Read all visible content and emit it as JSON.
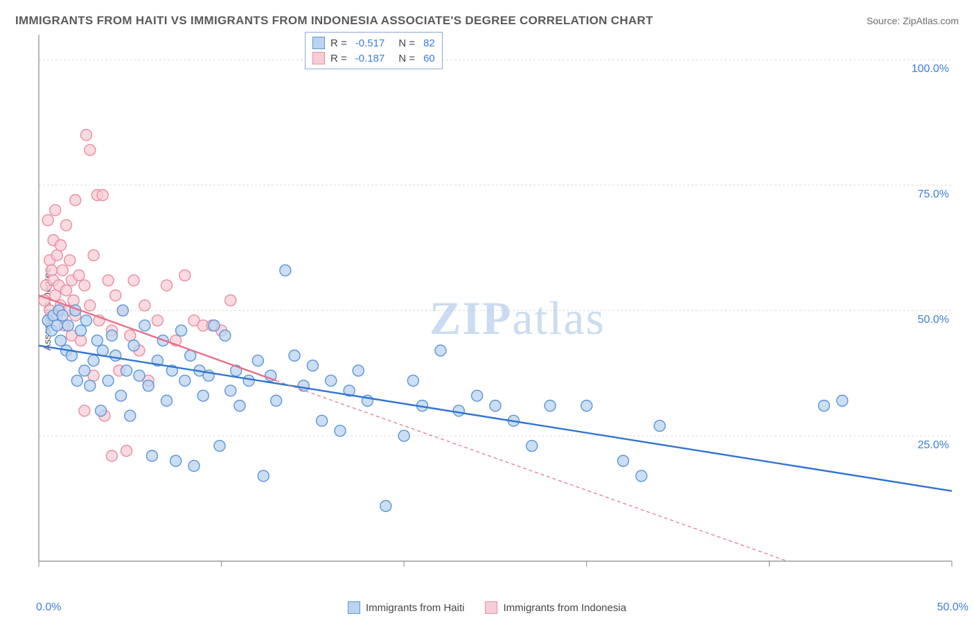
{
  "title": "IMMIGRANTS FROM HAITI VS IMMIGRANTS FROM INDONESIA ASSOCIATE'S DEGREE CORRELATION CHART",
  "source_label": "Source: ZipAtlas.com",
  "ylabel": "Associate's Degree",
  "watermark": "ZIPatlas",
  "chart": {
    "type": "scatter",
    "xlim": [
      0,
      50
    ],
    "ylim": [
      0,
      105
    ],
    "x_ticks": [
      "0.0%",
      "50.0%"
    ],
    "y_ticks": [
      {
        "v": 25,
        "label": "25.0%"
      },
      {
        "v": 50,
        "label": "50.0%"
      },
      {
        "v": 75,
        "label": "75.0%"
      },
      {
        "v": 100,
        "label": "100.0%"
      }
    ],
    "x_minor_ticks": [
      0,
      10,
      20,
      30,
      40,
      50
    ],
    "grid_color": "#d9d9d9",
    "axis_color": "#888888",
    "tick_label_color": "#3b7dd8",
    "background_color": "#ffffff",
    "marker_radius": 8,
    "marker_stroke_width": 1.4,
    "trend_line_width": 2.4,
    "trend_dash": "5,4",
    "series": [
      {
        "key": "haiti",
        "label": "Immigrants from Haiti",
        "fill": "#b9d3f0",
        "stroke": "#5a94d6",
        "line_color": "#2f74d0",
        "R": "-0.517",
        "N": "82",
        "trend_solid": {
          "x1": 0,
          "y1": 43,
          "x2": 50,
          "y2": 14
        },
        "trend_ext": null,
        "points": [
          [
            0.5,
            48
          ],
          [
            0.7,
            46
          ],
          [
            0.8,
            49
          ],
          [
            1.0,
            47
          ],
          [
            1.1,
            50
          ],
          [
            1.2,
            44
          ],
          [
            1.3,
            49
          ],
          [
            1.5,
            42
          ],
          [
            1.6,
            47
          ],
          [
            1.8,
            41
          ],
          [
            2.0,
            50
          ],
          [
            2.1,
            36
          ],
          [
            2.3,
            46
          ],
          [
            2.5,
            38
          ],
          [
            2.6,
            48
          ],
          [
            2.8,
            35
          ],
          [
            3.0,
            40
          ],
          [
            3.2,
            44
          ],
          [
            3.4,
            30
          ],
          [
            3.5,
            42
          ],
          [
            3.8,
            36
          ],
          [
            4.0,
            45
          ],
          [
            4.2,
            41
          ],
          [
            4.5,
            33
          ],
          [
            4.6,
            50
          ],
          [
            4.8,
            38
          ],
          [
            5.0,
            29
          ],
          [
            5.2,
            43
          ],
          [
            5.5,
            37
          ],
          [
            5.8,
            47
          ],
          [
            6.0,
            35
          ],
          [
            6.2,
            21
          ],
          [
            6.5,
            40
          ],
          [
            6.8,
            44
          ],
          [
            7.0,
            32
          ],
          [
            7.3,
            38
          ],
          [
            7.5,
            20
          ],
          [
            7.8,
            46
          ],
          [
            8.0,
            36
          ],
          [
            8.3,
            41
          ],
          [
            8.5,
            19
          ],
          [
            8.8,
            38
          ],
          [
            9.0,
            33
          ],
          [
            9.3,
            37
          ],
          [
            9.6,
            47
          ],
          [
            9.9,
            23
          ],
          [
            10.2,
            45
          ],
          [
            10.5,
            34
          ],
          [
            10.8,
            38
          ],
          [
            11.0,
            31
          ],
          [
            11.5,
            36
          ],
          [
            12.0,
            40
          ],
          [
            12.3,
            17
          ],
          [
            12.7,
            37
          ],
          [
            13.0,
            32
          ],
          [
            13.5,
            58
          ],
          [
            14.0,
            41
          ],
          [
            14.5,
            35
          ],
          [
            15.0,
            39
          ],
          [
            15.5,
            28
          ],
          [
            16.0,
            36
          ],
          [
            16.5,
            26
          ],
          [
            17.0,
            34
          ],
          [
            17.5,
            38
          ],
          [
            18.0,
            32
          ],
          [
            19.0,
            11
          ],
          [
            20.0,
            25
          ],
          [
            20.5,
            36
          ],
          [
            21.0,
            31
          ],
          [
            22.0,
            42
          ],
          [
            23.0,
            30
          ],
          [
            24.0,
            33
          ],
          [
            25.0,
            31
          ],
          [
            26.0,
            28
          ],
          [
            27.0,
            23
          ],
          [
            28.0,
            31
          ],
          [
            30.0,
            31
          ],
          [
            32.0,
            20
          ],
          [
            33.0,
            17
          ],
          [
            34.0,
            27
          ],
          [
            43.0,
            31
          ],
          [
            44.0,
            32
          ]
        ]
      },
      {
        "key": "indonesia",
        "label": "Immigrants from Indonesia",
        "fill": "#f6cdd6",
        "stroke": "#e98ca0",
        "line_color": "#e76f88",
        "R": "-0.187",
        "N": "60",
        "trend_solid": {
          "x1": 0,
          "y1": 53,
          "x2": 13,
          "y2": 36
        },
        "trend_ext": {
          "x1": 13,
          "y1": 36,
          "x2": 41,
          "y2": 0
        },
        "points": [
          [
            0.3,
            52
          ],
          [
            0.4,
            55
          ],
          [
            0.5,
            68
          ],
          [
            0.6,
            50
          ],
          [
            0.6,
            60
          ],
          [
            0.7,
            58
          ],
          [
            0.8,
            56
          ],
          [
            0.8,
            64
          ],
          [
            0.9,
            53
          ],
          [
            0.9,
            70
          ],
          [
            1.0,
            49
          ],
          [
            1.0,
            61
          ],
          [
            1.1,
            55
          ],
          [
            1.2,
            51
          ],
          [
            1.2,
            63
          ],
          [
            1.3,
            58
          ],
          [
            1.4,
            47
          ],
          [
            1.5,
            54
          ],
          [
            1.5,
            67
          ],
          [
            1.6,
            50
          ],
          [
            1.7,
            60
          ],
          [
            1.8,
            45
          ],
          [
            1.8,
            56
          ],
          [
            1.9,
            52
          ],
          [
            2.0,
            49
          ],
          [
            2.0,
            72
          ],
          [
            2.2,
            57
          ],
          [
            2.3,
            44
          ],
          [
            2.5,
            55
          ],
          [
            2.5,
            30
          ],
          [
            2.6,
            85
          ],
          [
            2.8,
            82
          ],
          [
            2.8,
            51
          ],
          [
            3.0,
            61
          ],
          [
            3.0,
            37
          ],
          [
            3.2,
            73
          ],
          [
            3.3,
            48
          ],
          [
            3.5,
            73
          ],
          [
            3.6,
            29
          ],
          [
            3.8,
            56
          ],
          [
            4.0,
            46
          ],
          [
            4.0,
            21
          ],
          [
            4.2,
            53
          ],
          [
            4.4,
            38
          ],
          [
            4.6,
            50
          ],
          [
            4.8,
            22
          ],
          [
            5.0,
            45
          ],
          [
            5.2,
            56
          ],
          [
            5.5,
            42
          ],
          [
            5.8,
            51
          ],
          [
            6.0,
            36
          ],
          [
            6.5,
            48
          ],
          [
            7.0,
            55
          ],
          [
            7.5,
            44
          ],
          [
            8.0,
            57
          ],
          [
            8.5,
            48
          ],
          [
            9.0,
            47
          ],
          [
            9.5,
            47
          ],
          [
            10.0,
            46
          ],
          [
            10.5,
            52
          ]
        ]
      }
    ]
  },
  "legend_bottom": [
    {
      "label": "Immigrants from Haiti",
      "fill": "#b9d3f0",
      "stroke": "#5a94d6"
    },
    {
      "label": "Immigrants from Indonesia",
      "fill": "#f6cdd6",
      "stroke": "#e98ca0"
    }
  ]
}
